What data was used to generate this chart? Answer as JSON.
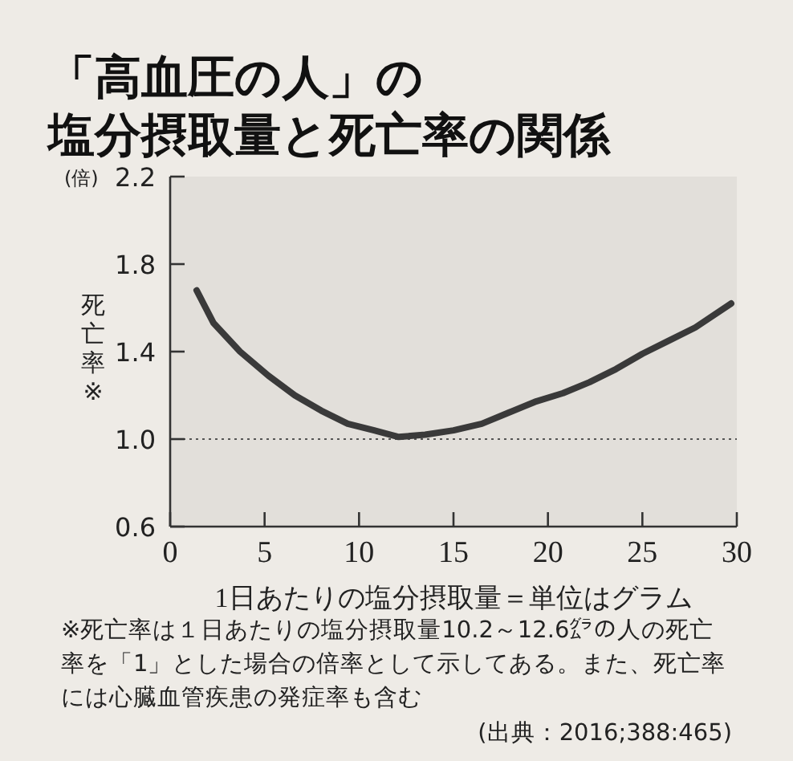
{
  "chart_data": {
    "type": "line",
    "title": "「高血圧の人」の",
    "subtitle": "塩分摂取量と死亡率の関係",
    "xlabel": "1日あたりの塩分摂取量＝単位はグラム",
    "ylabel": "死亡率※",
    "annotations": [
      "(倍)",
      "※死亡率は１日あたりの塩分摂取量10.2～12.6㌘の人の死亡率を「1」とした場合の倍率として示してある。また、死亡率には心臓血管疾患の発症率も含む",
      "(出典：2016;388:465)"
    ],
    "x": [
      1.4,
      2.3,
      3.7,
      5.2,
      6.6,
      8.0,
      9.4,
      10.8,
      12.1,
      13.5,
      15.0,
      16.5,
      17.9,
      19.3,
      20.8,
      22.2,
      23.6,
      25.0,
      26.4,
      27.8,
      29.7
    ],
    "series": [
      {
        "color": "#3a3a3a",
        "line_style": "solid",
        "values": [
          1.68,
          1.53,
          1.4,
          1.29,
          1.2,
          1.13,
          1.07,
          1.04,
          1.01,
          1.02,
          1.04,
          1.07,
          1.12,
          1.17,
          1.21,
          1.26,
          1.32,
          1.39,
          1.45,
          1.51,
          1.62
        ]
      }
    ],
    "xlim": [
      0,
      30
    ],
    "ylim": [
      0.6,
      2.2
    ],
    "xticks": [
      0,
      5,
      10,
      15,
      20,
      25,
      30
    ],
    "yticks": [
      {
        "value": 0.6,
        "label": "0.6"
      },
      {
        "value": 1,
        "label": "1.0"
      },
      {
        "value": 1.4,
        "label": "1.4"
      },
      {
        "value": 1.8,
        "label": "1.8"
      },
      {
        "value": 2.2,
        "label": "2.2"
      }
    ],
    "ref_lines": [
      {
        "axis": "y",
        "value": 1,
        "color": "#555555",
        "line_style": "dotted"
      }
    ]
  }
}
